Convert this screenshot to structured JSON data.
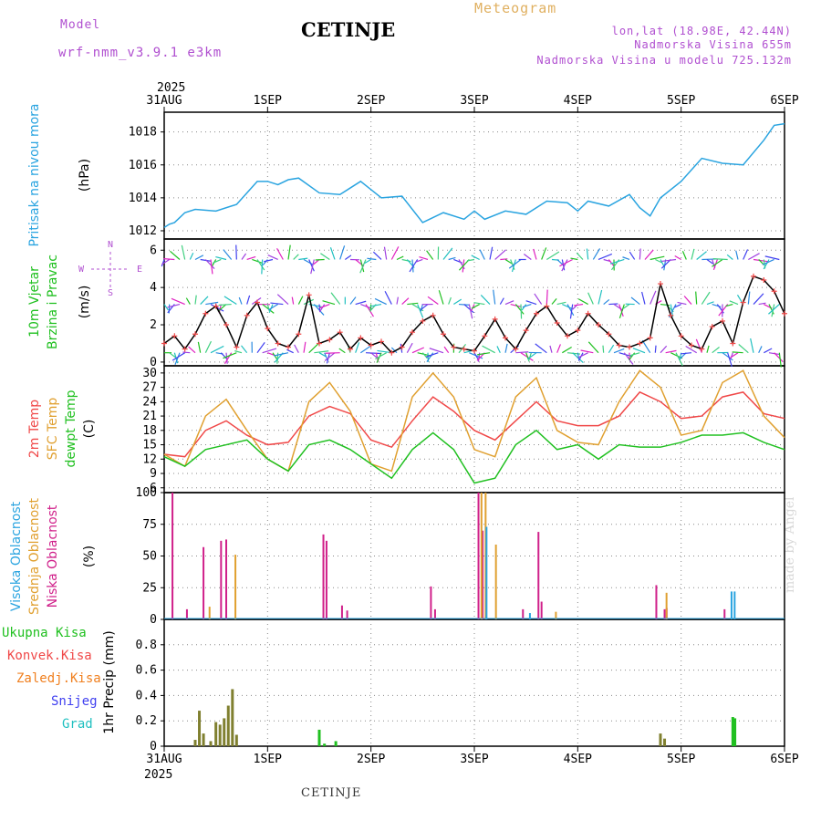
{
  "header": {
    "model_label": "Model",
    "model_name": "wrf-nmm_v3.9.1 e3km",
    "title": "CETINJE",
    "meteogram": "Meteogram",
    "lonlat": "lon,lat (18.98E, 42.44N)",
    "elevation": "Nadmorska Visina 655m",
    "model_elevation": "Nadmorska Visina u modelu 725.132m",
    "year": "2025",
    "footer": "CETINJE",
    "credit": "made by Angel"
  },
  "colors": {
    "pressure": "#2aa4e0",
    "wind_label": "#20c020",
    "wind_units": "#000000",
    "temp2m": "#f04848",
    "sfc": "#e0a030",
    "dewpt": "#20c020",
    "cloud_high": "#2aa4e0",
    "cloud_mid": "#e0a030",
    "cloud_low": "#d0208a",
    "precip_total": "#20c020",
    "precip_conv": "#f04848",
    "precip_strat": "#f08020",
    "snow": "#4040f0",
    "hail": "#20c0c0",
    "accent": "#b04fd0"
  },
  "chart_data": [
    {
      "type": "line",
      "title": "Pritisak na nivou mora",
      "ylabel": "(hPa)",
      "categories": [
        "31AUG",
        "1SEP",
        "2SEP",
        "3SEP",
        "4SEP",
        "5SEP",
        "6SEP"
      ],
      "ylim": [
        1011.5,
        1019.2
      ],
      "yticks": [
        1012,
        1014,
        1016,
        1018
      ],
      "series": [
        {
          "name": "pressure",
          "x": [
            0,
            0.05,
            0.1,
            0.15,
            0.2,
            0.3,
            0.5,
            0.7,
            0.9,
            1.0,
            1.1,
            1.2,
            1.3,
            1.5,
            1.7,
            1.9,
            2.0,
            2.1,
            2.3,
            2.5,
            2.7,
            2.9,
            3.0,
            3.1,
            3.3,
            3.5,
            3.7,
            3.9,
            4.0,
            4.1,
            4.3,
            4.5,
            4.6,
            4.7,
            4.8,
            5.0,
            5.2,
            5.4,
            5.6,
            5.8,
            5.9,
            6.0
          ],
          "values": [
            1012.2,
            1012.4,
            1012.5,
            1012.8,
            1013.1,
            1013.3,
            1013.2,
            1013.6,
            1015.0,
            1015.0,
            1014.8,
            1015.1,
            1015.2,
            1014.3,
            1014.2,
            1015.0,
            1014.5,
            1014.0,
            1014.1,
            1012.5,
            1013.1,
            1012.7,
            1013.2,
            1012.7,
            1013.2,
            1013.0,
            1013.8,
            1013.7,
            1013.2,
            1013.8,
            1013.5,
            1014.2,
            1013.4,
            1012.9,
            1014.0,
            1015.0,
            1016.4,
            1016.1,
            1016.0,
            1017.5,
            1018.4,
            1018.5
          ]
        }
      ]
    },
    {
      "type": "line",
      "title": "10m Vjetar Brzina i Pravac",
      "ylabel": "(m/s)",
      "compass": {
        "n": "N",
        "s": "S",
        "w": "W",
        "e": "E"
      },
      "ylim": [
        -0.2,
        6.6
      ],
      "yticks": [
        0,
        2,
        4,
        6
      ],
      "series": [
        {
          "name": "wind speed",
          "x": [
            0,
            0.1,
            0.2,
            0.3,
            0.4,
            0.5,
            0.6,
            0.7,
            0.8,
            0.9,
            1.0,
            1.1,
            1.2,
            1.3,
            1.4,
            1.5,
            1.6,
            1.7,
            1.8,
            1.9,
            2.0,
            2.1,
            2.2,
            2.3,
            2.4,
            2.5,
            2.6,
            2.7,
            2.8,
            2.9,
            3.0,
            3.1,
            3.2,
            3.3,
            3.4,
            3.5,
            3.6,
            3.7,
            3.8,
            3.9,
            4.0,
            4.1,
            4.2,
            4.3,
            4.4,
            4.5,
            4.6,
            4.7,
            4.8,
            4.9,
            5.0,
            5.1,
            5.2,
            5.3,
            5.4,
            5.5,
            5.6,
            5.7,
            5.8,
            5.9,
            6.0
          ],
          "values": [
            1.0,
            1.4,
            0.7,
            1.5,
            2.6,
            3.0,
            2.0,
            0.8,
            2.5,
            3.2,
            1.8,
            1.0,
            0.8,
            1.5,
            3.6,
            1.0,
            1.2,
            1.6,
            0.7,
            1.3,
            0.9,
            1.1,
            0.5,
            0.8,
            1.6,
            2.2,
            2.5,
            1.5,
            0.8,
            0.7,
            0.6,
            1.4,
            2.3,
            1.3,
            0.7,
            1.7,
            2.6,
            3.0,
            2.1,
            1.4,
            1.7,
            2.6,
            2.0,
            1.5,
            0.9,
            0.8,
            1.0,
            1.3,
            4.2,
            2.5,
            1.4,
            0.9,
            0.7,
            1.9,
            2.2,
            1.0,
            3.2,
            4.6,
            4.4,
            3.8,
            2.6
          ]
        }
      ]
    },
    {
      "type": "line",
      "title": "2m Temp / SFC Temp / dewpt Temp",
      "labels": [
        "2m Temp",
        "SFC Temp",
        "dewpt Temp"
      ],
      "ylabel": "(C)",
      "ylim": [
        5,
        31.5
      ],
      "yticks": [
        6,
        9,
        12,
        15,
        18,
        21,
        24,
        27,
        30
      ],
      "series": [
        {
          "name": "2m Temp",
          "x": [
            0,
            0.2,
            0.4,
            0.6,
            0.8,
            1.0,
            1.2,
            1.4,
            1.6,
            1.8,
            2.0,
            2.2,
            2.4,
            2.6,
            2.8,
            3.0,
            3.2,
            3.4,
            3.6,
            3.8,
            4.0,
            4.2,
            4.4,
            4.6,
            4.8,
            5.0,
            5.2,
            5.4,
            5.6,
            5.8,
            6.0
          ],
          "values": [
            13.0,
            12.5,
            18.0,
            20.0,
            17.0,
            15.0,
            15.5,
            21.0,
            23.0,
            21.5,
            16.0,
            14.5,
            20.0,
            25.0,
            22.0,
            18.0,
            16.0,
            20.0,
            24.0,
            20.0,
            19.0,
            19.0,
            21.0,
            26.0,
            24.0,
            20.5,
            21.0,
            25.0,
            26.0,
            21.5,
            20.5
          ]
        },
        {
          "name": "SFC Temp",
          "x": [
            0,
            0.2,
            0.4,
            0.6,
            0.8,
            1.0,
            1.2,
            1.4,
            1.6,
            1.8,
            2.0,
            2.2,
            2.4,
            2.6,
            2.8,
            3.0,
            3.2,
            3.4,
            3.6,
            3.8,
            4.0,
            4.2,
            4.4,
            4.6,
            4.8,
            5.0,
            5.2,
            5.4,
            5.6,
            5.8,
            6.0
          ],
          "values": [
            13.0,
            10.5,
            21.0,
            24.5,
            18.0,
            12.0,
            9.5,
            24.0,
            28.0,
            22.0,
            11.0,
            9.5,
            25.0,
            30.0,
            25.0,
            14.0,
            12.5,
            25.0,
            29.0,
            18.0,
            15.5,
            15.0,
            24.0,
            30.5,
            27.0,
            17.0,
            18.0,
            28.0,
            30.5,
            21.0,
            16.5
          ]
        },
        {
          "name": "dewpt Temp",
          "x": [
            0,
            0.2,
            0.4,
            0.6,
            0.8,
            1.0,
            1.2,
            1.4,
            1.6,
            1.8,
            2.0,
            2.2,
            2.4,
            2.6,
            2.8,
            3.0,
            3.2,
            3.4,
            3.6,
            3.8,
            4.0,
            4.2,
            4.4,
            4.6,
            4.8,
            5.0,
            5.2,
            5.4,
            5.6,
            5.8,
            6.0
          ],
          "values": [
            12.5,
            10.5,
            14.0,
            15.0,
            16.0,
            12.0,
            9.5,
            15.0,
            16.0,
            14.0,
            11.0,
            8.0,
            14.0,
            17.5,
            14.0,
            7.0,
            8.0,
            15.0,
            18.0,
            14.0,
            15.0,
            12.0,
            15.0,
            14.5,
            14.5,
            15.5,
            17.0,
            17.0,
            17.5,
            15.5,
            14.0
          ]
        }
      ]
    },
    {
      "type": "bar",
      "title": "Visoka / Srednja / Niska Oblacnost",
      "labels": [
        "Visoka Oblacnost",
        "Srednja Oblacnost",
        "Niska Oblacnost"
      ],
      "ylabel": "(%)",
      "ylim": [
        0,
        100
      ],
      "yticks": [
        0,
        25,
        50,
        75,
        100
      ],
      "series": [
        {
          "name": "Niska",
          "x": [
            0.08,
            0.22,
            0.38,
            0.55,
            0.6,
            1.54,
            1.57,
            1.72,
            1.77,
            2.58,
            2.62,
            3.04,
            3.08,
            3.47,
            3.62,
            3.65,
            4.76,
            4.84,
            4.86,
            5.42
          ],
          "values": [
            100,
            8,
            57,
            62,
            63,
            67,
            62,
            11,
            7,
            26,
            8,
            100,
            70,
            8,
            69,
            14,
            27,
            8,
            9,
            8
          ]
        },
        {
          "name": "Srednja",
          "x": [
            0.43,
            0.68,
            3.06,
            3.1,
            3.2,
            3.78,
            4.85
          ],
          "values": [
            10,
            51,
            100,
            100,
            59,
            6,
            21
          ]
        },
        {
          "name": "Visoka",
          "x": [
            3.1,
            3.52,
            5.47,
            5.5
          ],
          "values": [
            73,
            5,
            22,
            22
          ]
        }
      ]
    },
    {
      "type": "bar",
      "title": "1hr Precip",
      "ylabel": "1hr Precip (mm)",
      "labels": [
        "Ukupna Kisa",
        "Konvek.Kisa",
        "Zaledj.Kisa",
        "Snijeg",
        "Grad"
      ],
      "ylim": [
        0,
        1.0
      ],
      "yticks": [
        0,
        0.2,
        0.4,
        0.6,
        0.8
      ],
      "series": [
        {
          "name": "Ukupna Kisa",
          "x": [
            0.3,
            0.34,
            0.38,
            0.45,
            0.5,
            0.54,
            0.58,
            0.62,
            0.66,
            0.7,
            1.5,
            1.55,
            1.66,
            4.8,
            4.84,
            5.5,
            5.52
          ],
          "values": [
            0.05,
            0.28,
            0.1,
            0.04,
            0.19,
            0.17,
            0.22,
            0.32,
            0.45,
            0.09,
            0.13,
            0.02,
            0.04,
            0.1,
            0.06,
            0.23,
            0.22
          ]
        }
      ]
    }
  ]
}
